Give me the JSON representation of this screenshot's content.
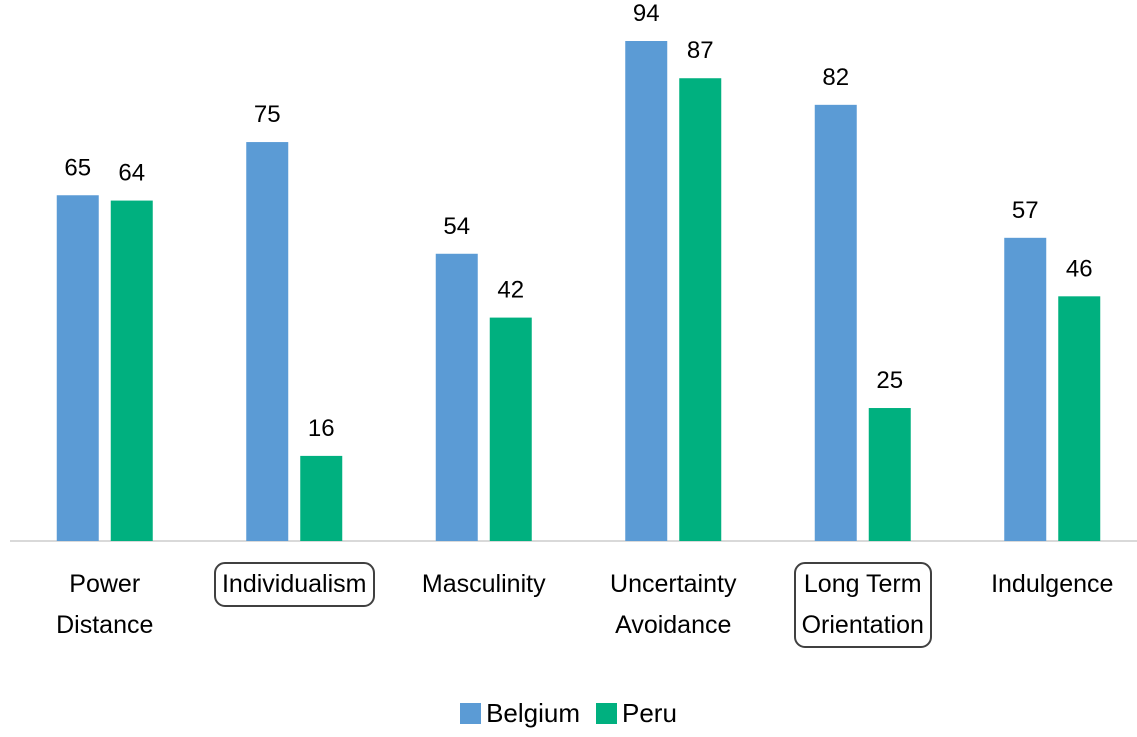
{
  "chart_data": {
    "type": "bar",
    "categories": [
      "Power\nDistance",
      "Individualism",
      "Masculinity",
      "Uncertainty\nAvoidance",
      "Long Term\nOrientation",
      "Indulgence"
    ],
    "series": [
      {
        "name": "Belgium",
        "color": "#5b9bd5",
        "values": [
          65,
          75,
          54,
          94,
          82,
          57
        ]
      },
      {
        "name": "Peru",
        "color": "#00b07f",
        "values": [
          64,
          16,
          42,
          87,
          25,
          46
        ]
      }
    ],
    "highlight": [
      1,
      4
    ],
    "legend": "bottom"
  }
}
